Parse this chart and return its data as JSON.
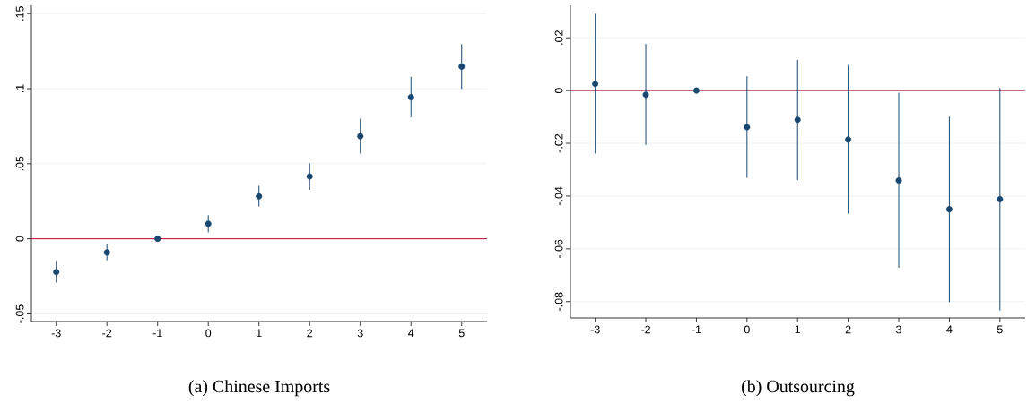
{
  "chart_data": [
    {
      "type": "scatter",
      "title": "(a) Chinese Imports",
      "x": [
        -3,
        -2,
        -1,
        0,
        1,
        2,
        3,
        4,
        5
      ],
      "series": [
        {
          "color": "#1a476f",
          "values": [
            -0.0221,
            -0.0091,
            0,
            0.01,
            0.0283,
            0.0415,
            0.0683,
            0.0943,
            0.1147
          ],
          "errors": [
            [
              -0.0291,
              -0.0147
            ],
            [
              -0.0143,
              -0.0038
            ],
            null,
            [
              0.0043,
              0.0157
            ],
            [
              0.0215,
              0.0353
            ],
            [
              0.0326,
              0.0502
            ],
            [
              0.0568,
              0.08
            ],
            [
              0.0809,
              0.1079
            ],
            [
              0.0998,
              0.1296
            ]
          ]
        }
      ],
      "xlim": [
        -3.49,
        5.5
      ],
      "xticks": [
        -3,
        -2,
        -1,
        0,
        1,
        2,
        3,
        4,
        5
      ],
      "ylim": [
        -0.0551,
        0.1555
      ],
      "yticks": [
        {
          "value": -0.05,
          "label": "-.05"
        },
        {
          "value": 0,
          "label": "0"
        },
        {
          "value": 0.05,
          "label": ".05"
        },
        {
          "value": 0.1,
          "label": ".1"
        },
        {
          "value": 0.15,
          "label": ".15"
        }
      ],
      "ref_lines": [
        {
          "axis": "y",
          "value": 0,
          "color": "#c10534"
        }
      ],
      "grid": "y",
      "marker": "circle"
    },
    {
      "type": "scatter",
      "title": "(b) Outsourcing",
      "x": [
        -3,
        -2,
        -1,
        0,
        1,
        2,
        3,
        4,
        5
      ],
      "series": [
        {
          "color": "#1a476f",
          "values": [
            0.0025,
            -0.0016,
            0,
            -0.0139,
            -0.0111,
            -0.0186,
            -0.0341,
            -0.045,
            -0.0412
          ],
          "errors": [
            [
              -0.0239,
              0.0291
            ],
            [
              -0.0206,
              0.0177
            ],
            null,
            [
              -0.0331,
              0.0054
            ],
            [
              -0.0339,
              0.0116
            ],
            [
              -0.0467,
              0.0097
            ],
            [
              -0.0672,
              -0.0008
            ],
            [
              -0.0802,
              -0.0099
            ],
            [
              -0.0834,
              0.001
            ]
          ]
        }
      ],
      "xlim": [
        -3.49,
        5.5
      ],
      "xticks": [
        -3,
        -2,
        -1,
        0,
        1,
        2,
        3,
        4,
        5
      ],
      "ylim": [
        -0.0862,
        0.0323
      ],
      "yticks": [
        {
          "value": -0.08,
          "label": "-.08"
        },
        {
          "value": -0.06,
          "label": "-.06"
        },
        {
          "value": -0.04,
          "label": "-.04"
        },
        {
          "value": -0.02,
          "label": "-.02"
        },
        {
          "value": 0,
          "label": "0"
        },
        {
          "value": 0.02,
          "label": ".02"
        }
      ],
      "ref_lines": [
        {
          "axis": "y",
          "value": 0,
          "color": "#c10534"
        }
      ],
      "grid": "y",
      "marker": "circle"
    }
  ]
}
